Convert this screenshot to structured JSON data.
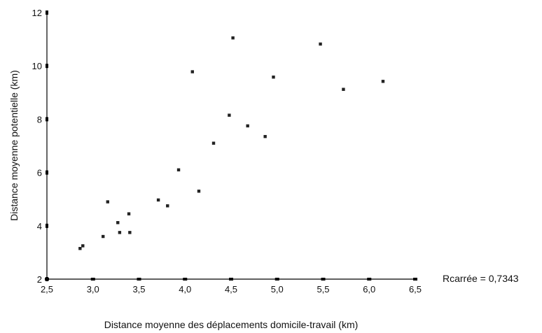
{
  "chart_data": {
    "type": "scatter",
    "title": "",
    "xlabel": "Distance moyenne des déplacements domicile-travail (km)",
    "ylabel": "Distance moyenne potentielle (km)",
    "xlim": [
      2.5,
      6.5
    ],
    "ylim": [
      2,
      12
    ],
    "x_ticks": [
      2.5,
      3.0,
      3.5,
      4.0,
      4.5,
      5.0,
      5.5,
      6.0,
      6.5
    ],
    "x_tick_labels": [
      "2,5",
      "3,0",
      "3,5",
      "4,0",
      "4,5",
      "5,0",
      "5,5",
      "6,0",
      "6,5"
    ],
    "y_ticks": [
      2,
      4,
      6,
      8,
      10,
      12
    ],
    "y_tick_labels": [
      "2",
      "4",
      "6",
      "8",
      "10",
      "12"
    ],
    "grid": false,
    "annotation": "Rcarrée = 0,7343",
    "series": [
      {
        "color": "#222222",
        "points": [
          {
            "x": 2.86,
            "y": 3.15
          },
          {
            "x": 2.89,
            "y": 3.25
          },
          {
            "x": 3.11,
            "y": 3.6
          },
          {
            "x": 3.16,
            "y": 4.9
          },
          {
            "x": 3.27,
            "y": 4.12
          },
          {
            "x": 3.29,
            "y": 3.75
          },
          {
            "x": 3.39,
            "y": 4.45
          },
          {
            "x": 3.4,
            "y": 3.75
          },
          {
            "x": 3.71,
            "y": 4.97
          },
          {
            "x": 3.81,
            "y": 4.75
          },
          {
            "x": 3.93,
            "y": 6.1
          },
          {
            "x": 4.08,
            "y": 9.78
          },
          {
            "x": 4.15,
            "y": 5.3
          },
          {
            "x": 4.31,
            "y": 7.1
          },
          {
            "x": 4.48,
            "y": 8.15
          },
          {
            "x": 4.52,
            "y": 11.05
          },
          {
            "x": 4.68,
            "y": 7.75
          },
          {
            "x": 4.87,
            "y": 7.35
          },
          {
            "x": 4.96,
            "y": 9.58
          },
          {
            "x": 5.47,
            "y": 10.82
          },
          {
            "x": 5.72,
            "y": 9.12
          },
          {
            "x": 6.15,
            "y": 9.42
          }
        ]
      }
    ]
  }
}
